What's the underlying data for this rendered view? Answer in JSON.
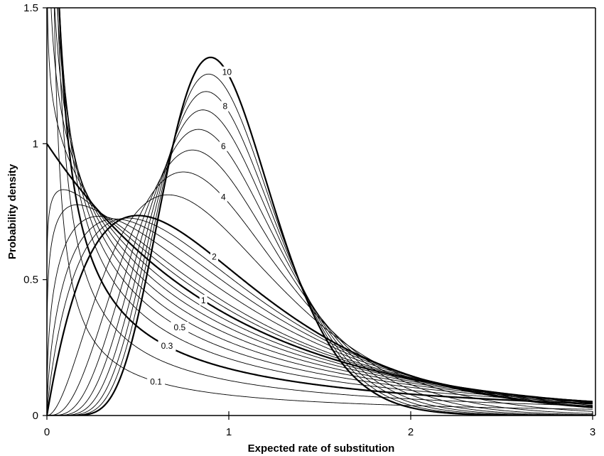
{
  "chart_data": {
    "type": "line",
    "title": "",
    "xlabel": "Expected rate of substitution",
    "ylabel": "Probability density",
    "xlim": [
      0,
      3
    ],
    "ylim": [
      0,
      1.5
    ],
    "xticks": [
      "0",
      "1",
      "2",
      "3"
    ],
    "yticks": [
      "0",
      "0.5",
      "1",
      "1.5"
    ],
    "grid": false,
    "legend": "none",
    "function": "gamma density with mean 1, shape alpha",
    "series": [
      {
        "alpha": 0.1,
        "label": "0.1",
        "bold": false
      },
      {
        "alpha": 0.2,
        "bold": false
      },
      {
        "alpha": 0.3,
        "label": "0.3",
        "bold": true
      },
      {
        "alpha": 0.4,
        "bold": false
      },
      {
        "alpha": 0.5,
        "label": "0.5",
        "bold": false
      },
      {
        "alpha": 0.6,
        "bold": false
      },
      {
        "alpha": 0.7,
        "bold": false
      },
      {
        "alpha": 0.8,
        "bold": false
      },
      {
        "alpha": 0.9,
        "bold": false
      },
      {
        "alpha": 1,
        "label": "1",
        "bold": true
      },
      {
        "alpha": 1.1,
        "bold": false
      },
      {
        "alpha": 1.2,
        "bold": false
      },
      {
        "alpha": 1.4,
        "bold": false
      },
      {
        "alpha": 1.6,
        "bold": false
      },
      {
        "alpha": 1.8,
        "bold": false
      },
      {
        "alpha": 2,
        "label": "2",
        "bold": true
      },
      {
        "alpha": 3,
        "bold": false
      },
      {
        "alpha": 4,
        "label": "4",
        "bold": false
      },
      {
        "alpha": 5,
        "bold": false
      },
      {
        "alpha": 6,
        "label": "6",
        "bold": false
      },
      {
        "alpha": 7,
        "bold": false
      },
      {
        "alpha": 8,
        "label": "8",
        "bold": false
      },
      {
        "alpha": 9,
        "bold": false
      },
      {
        "alpha": 10,
        "label": "10",
        "bold": true
      }
    ],
    "colors": {
      "line": "#000000",
      "background": "#ffffff"
    }
  }
}
